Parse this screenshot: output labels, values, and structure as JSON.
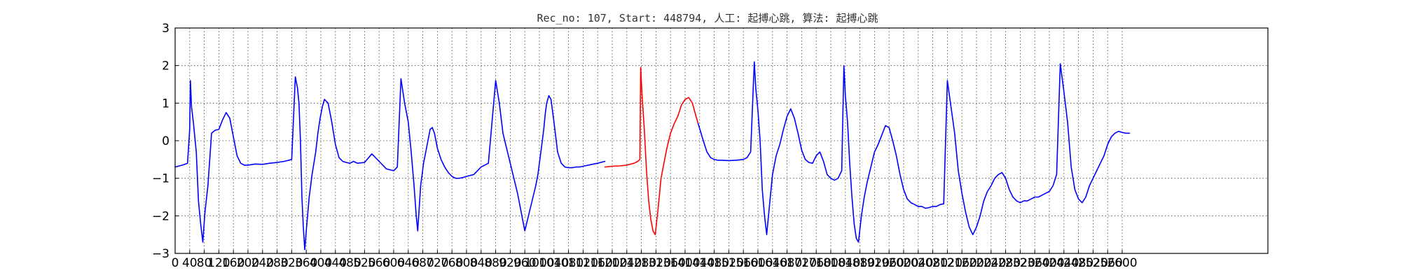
{
  "chart_data": {
    "type": "line",
    "title": "Rec_no: 107, Start: 448794, 人工: 起搏心跳, 算法: 起搏心跳",
    "xlabel": "",
    "ylabel": "",
    "xlim": [
      0,
      3000
    ],
    "ylim": [
      -3,
      3
    ],
    "grid": true,
    "xticks": [
      0,
      40,
      80,
      120,
      160,
      200,
      240,
      280,
      320,
      360,
      400,
      440,
      480,
      520,
      560,
      600,
      640,
      680,
      720,
      760,
      800,
      840,
      880,
      920,
      960,
      1000,
      1040,
      1080,
      1120,
      1160,
      1200,
      1240,
      1280,
      1320,
      1360,
      1400,
      1440,
      1480,
      1520,
      1560,
      1600,
      1640,
      1680,
      1720,
      1760,
      1800,
      1840,
      1880,
      1920,
      1960,
      2000,
      2040,
      2080,
      2120,
      2160,
      2200,
      2240,
      2280,
      2320,
      2360,
      2400,
      2440,
      2480,
      2520,
      2560,
      2600
    ],
    "xtick_labels": [
      "0",
      "40",
      "80",
      "120",
      "160",
      "200",
      "240",
      "280",
      "320",
      "360",
      "400",
      "440",
      "480",
      "520",
      "560",
      "600",
      "640",
      "680",
      "720",
      "760",
      "800",
      "840",
      "880",
      "920",
      "960",
      "1000",
      "1040",
      "1080",
      "1120",
      "1160",
      "1200",
      "1240",
      "1280",
      "1320",
      "1360",
      "1400",
      "1440",
      "1480",
      "1520",
      "1560",
      "1600",
      "1640",
      "1680",
      "1720",
      "1760",
      "1800",
      "1840",
      "1880",
      "1920",
      "1960",
      "2000",
      "2040",
      "2080",
      "2120",
      "2160",
      "2200",
      "2240",
      "2280",
      "2320",
      "2360",
      "2400",
      "2440",
      "2480",
      "2520",
      "2560",
      "2600"
    ],
    "yticks": [
      -3,
      -2,
      -1,
      0,
      1,
      2,
      3
    ],
    "ytick_labels": [
      "−3",
      "−2",
      "−1",
      "0",
      "1",
      "2",
      "3"
    ],
    "series": [
      {
        "color": "#0000ff",
        "x": [
          0,
          20,
          34,
          40,
          42,
          45,
          50,
          58,
          64,
          70,
          76,
          82,
          90,
          100,
          110,
          120,
          130,
          140,
          150,
          160,
          170,
          180,
          190,
          200,
          220,
          240,
          260,
          280,
          300,
          320,
          330,
          336,
          340,
          344,
          348,
          352,
          356,
          360,
          368,
          376,
          386,
          392,
          398,
          404,
          410,
          420,
          430,
          440,
          450,
          460,
          470,
          480,
          490,
          500,
          520,
          540,
          560,
          580,
          600,
          610,
          620,
          630,
          640,
          648,
          656,
          662,
          666,
          670,
          674,
          678,
          682,
          688,
          694,
          700,
          706,
          712,
          720,
          730,
          740,
          750,
          760,
          770,
          780,
          790,
          800,
          820,
          840,
          860,
          880,
          890,
          900,
          920,
          940,
          960,
          980,
          990,
          996,
          1000,
          1004,
          1008,
          1012,
          1016,
          1020,
          1026,
          1032,
          1040,
          1050,
          1060,
          1070,
          1080,
          1090,
          1100,
          1110,
          1120,
          1130,
          1140,
          1160,
          1180
        ],
        "y": [
          -0.7,
          -0.65,
          -0.6,
          0.3,
          1.6,
          0.9,
          0.5,
          -0.3,
          -1.6,
          -2.2,
          -2.7,
          -1.9,
          -1.2,
          0.2,
          0.28,
          0.3,
          0.55,
          0.75,
          0.6,
          0.1,
          -0.4,
          -0.6,
          -0.65,
          -0.65,
          -0.62,
          -0.63,
          -0.6,
          -0.58,
          -0.55,
          -0.5,
          1.7,
          1.4,
          1.0,
          0.0,
          -1.5,
          -2.3,
          -2.9,
          -2.4,
          -1.5,
          -0.9,
          -0.3,
          0.2,
          0.6,
          0.9,
          1.1,
          1.0,
          0.5,
          -0.1,
          -0.45,
          -0.55,
          -0.58,
          -0.6,
          -0.55,
          -0.6,
          -0.58,
          -0.35,
          -0.55,
          -0.75,
          -0.8,
          -0.7,
          1.65,
          1.0,
          0.5,
          -0.3,
          -1.2,
          -2.0,
          -2.4,
          -1.8,
          -1.2,
          -0.9,
          -0.6,
          -0.3,
          0.0,
          0.3,
          0.35,
          0.2,
          -0.2,
          -0.5,
          -0.7,
          -0.85,
          -0.95,
          -1.0,
          -1.0,
          -0.98,
          -0.95,
          -0.9,
          -0.7,
          -0.6,
          1.6,
          1.0,
          0.2,
          -0.6,
          -1.4,
          -2.4,
          -1.6,
          -1.2,
          -0.9,
          -0.6,
          -0.3,
          0.0,
          0.3,
          0.7,
          1.0,
          1.2,
          1.1,
          0.5,
          -0.3,
          -0.6,
          -0.7,
          -0.72,
          -0.72,
          -0.7,
          -0.7,
          -0.68,
          -0.66,
          -0.64,
          -0.6,
          -0.55
        ]
      },
      {
        "color": "#ff0000",
        "x": [
          1180,
          1200,
          1220,
          1240,
          1260,
          1270,
          1276,
          1278,
          1282,
          1288,
          1294,
          1300,
          1306,
          1312,
          1318,
          1326,
          1334,
          1342,
          1350,
          1360,
          1370,
          1380,
          1390,
          1400,
          1410,
          1420,
          1430,
          1436
        ],
        "y": [
          -0.7,
          -0.68,
          -0.67,
          -0.65,
          -0.6,
          -0.55,
          -0.5,
          1.95,
          1.2,
          0.3,
          -0.8,
          -1.6,
          -2.1,
          -2.4,
          -2.5,
          -1.8,
          -1.0,
          -0.6,
          -0.2,
          0.2,
          0.45,
          0.65,
          0.95,
          1.1,
          1.15,
          1.0,
          0.65,
          0.45
        ]
      },
      {
        "color": "#0000ff",
        "x": [
          1436,
          1450,
          1460,
          1470,
          1480,
          1490,
          1500,
          1520,
          1540,
          1560,
          1570,
          1580,
          1590,
          1594,
          1600,
          1606,
          1612,
          1618,
          1624,
          1632,
          1640,
          1650,
          1660,
          1670,
          1680,
          1690,
          1700,
          1710,
          1720,
          1730,
          1740,
          1750,
          1760,
          1770,
          1780,
          1790,
          1800,
          1810,
          1820,
          1830,
          1836,
          1840,
          1846,
          1852,
          1858,
          1864,
          1870,
          1876,
          1884,
          1892,
          1900,
          1910,
          1920,
          1930,
          1940,
          1950,
          1960,
          1970,
          1980,
          1990,
          2000,
          2010,
          2020,
          2030,
          2040,
          2050,
          2060,
          2070,
          2080,
          2090,
          2100,
          2110,
          2120,
          2130,
          2140,
          2150,
          2160,
          2170,
          2180,
          2190,
          2200,
          2210,
          2220,
          2230,
          2240,
          2250,
          2260,
          2270,
          2280,
          2290,
          2300,
          2310,
          2320,
          2330,
          2340,
          2350,
          2360,
          2370,
          2380,
          2390,
          2400,
          2410,
          2420,
          2430,
          2440,
          2450,
          2460,
          2470,
          2480,
          2490,
          2500,
          2510,
          2520,
          2530,
          2540,
          2550,
          2560,
          2570,
          2580,
          2590,
          2600,
          2610,
          2620
        ],
        "y": [
          0.45,
          0.0,
          -0.3,
          -0.45,
          -0.5,
          -0.52,
          -0.52,
          -0.53,
          -0.52,
          -0.5,
          -0.45,
          -0.3,
          2.1,
          1.4,
          0.8,
          0.0,
          -1.3,
          -2.0,
          -2.5,
          -1.7,
          -0.9,
          -0.4,
          -0.1,
          0.3,
          0.65,
          0.85,
          0.6,
          0.2,
          -0.25,
          -0.5,
          -0.58,
          -0.6,
          -0.4,
          -0.3,
          -0.55,
          -0.9,
          -1.0,
          -1.05,
          -1.0,
          -0.8,
          2.0,
          1.2,
          0.5,
          -0.6,
          -1.5,
          -2.2,
          -2.6,
          -2.7,
          -2.0,
          -1.5,
          -1.1,
          -0.7,
          -0.3,
          -0.1,
          0.15,
          0.4,
          0.35,
          0.0,
          -0.4,
          -0.9,
          -1.3,
          -1.55,
          -1.65,
          -1.7,
          -1.75,
          -1.75,
          -1.8,
          -1.78,
          -1.75,
          -1.75,
          -1.7,
          -1.68,
          1.6,
          0.9,
          0.2,
          -0.8,
          -1.4,
          -1.9,
          -2.3,
          -2.5,
          -2.3,
          -2.0,
          -1.6,
          -1.35,
          -1.2,
          -1.0,
          -0.9,
          -0.85,
          -1.0,
          -1.3,
          -1.5,
          -1.6,
          -1.65,
          -1.6,
          -1.6,
          -1.55,
          -1.5,
          -1.5,
          -1.45,
          -1.4,
          -1.35,
          -1.2,
          -0.9,
          2.05,
          1.3,
          0.5,
          -0.7,
          -1.3,
          -1.55,
          -1.65,
          -1.5,
          -1.2,
          -1.0,
          -0.8,
          -0.6,
          -0.4,
          -0.1,
          0.1,
          0.2,
          0.25,
          0.22,
          0.2,
          0.2
        ]
      }
    ]
  }
}
